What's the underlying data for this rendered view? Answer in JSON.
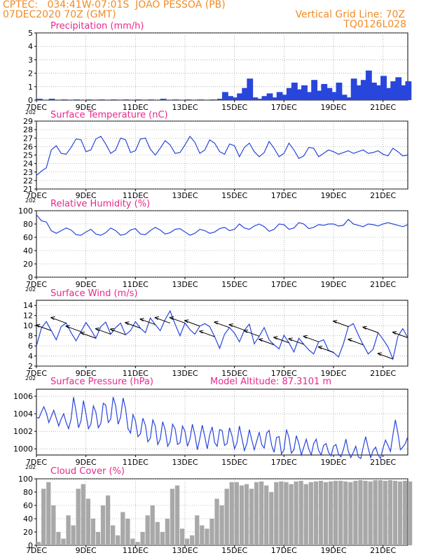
{
  "header": {
    "line1": "CPTEC:   034:41W-07:01S  JOAO PESSOA (PB)",
    "line2": "07DEC2020 70Z (GMT)",
    "right1": "Vertical Grid Line: 70Z",
    "right2": "TQ0126L028"
  },
  "colors": {
    "header": "#f08c28",
    "title": "#e8288c",
    "series": "#2846dc",
    "cloud": "#a8a8a8",
    "wind_arrow": "#000000"
  },
  "x_axis": {
    "labels": [
      "7DEC",
      "9DEC",
      "11DEC",
      "13DEC",
      "15DEC",
      "17DEC",
      "19DEC",
      "21DEC"
    ],
    "start_day": 7,
    "end_day": 22,
    "overlap_label": "202"
  },
  "chart_data": [
    {
      "id": "precip",
      "type": "bar",
      "title": "Precipitation (mm/h)",
      "ylim": [
        0,
        5
      ],
      "yticks": [
        0,
        1,
        2,
        3,
        4,
        5
      ],
      "grid": true,
      "x_days": [
        7.0,
        7.5,
        8.0,
        8.5,
        9.0,
        9.5,
        10.0,
        10.5,
        11.0,
        11.5,
        12.0,
        12.5,
        13.0,
        13.5,
        14.0,
        14.3,
        14.5,
        14.7,
        14.9,
        15.1,
        15.3,
        15.5,
        15.7,
        15.9,
        16.1,
        16.3,
        16.5,
        16.7,
        16.9,
        17.1,
        17.3,
        17.5,
        17.7,
        17.9,
        18.1,
        18.3,
        18.5,
        18.7,
        18.9,
        19.1,
        19.3,
        19.5,
        19.7,
        19.9,
        20.1,
        20.3,
        20.5,
        20.7,
        20.9,
        21.1,
        21.3,
        21.5,
        21.7,
        21.9
      ],
      "values": [
        0.1,
        0.1,
        0.05,
        0.05,
        0.05,
        0.05,
        0.05,
        0.05,
        0.05,
        0.05,
        0.1,
        0.05,
        0.05,
        0.05,
        0.05,
        0.1,
        0.6,
        0.3,
        0.2,
        0.5,
        0.9,
        1.6,
        0.2,
        0.1,
        0.3,
        0.5,
        0.2,
        0.6,
        0.4,
        0.9,
        1.3,
        0.8,
        1.1,
        0.6,
        1.5,
        0.7,
        1.2,
        0.9,
        0.6,
        1.3,
        0.4,
        0.2,
        1.6,
        1.1,
        1.5,
        2.2,
        1.3,
        1.1,
        1.8,
        0.9,
        1.4,
        1.7,
        1.1,
        1.4
      ]
    },
    {
      "id": "temp",
      "type": "line",
      "title": "Surface Temperature (nC)",
      "ylim": [
        21,
        29
      ],
      "yticks": [
        21,
        22,
        23,
        24,
        25,
        26,
        27,
        28,
        29
      ],
      "grid": true,
      "x_days": [
        7.0,
        7.2,
        7.4,
        7.6,
        7.8,
        8.0,
        8.2,
        8.4,
        8.6,
        8.8,
        9.0,
        9.2,
        9.4,
        9.6,
        9.8,
        10.0,
        10.2,
        10.4,
        10.6,
        10.8,
        11.0,
        11.2,
        11.4,
        11.6,
        11.8,
        12.0,
        12.2,
        12.4,
        12.6,
        12.8,
        13.0,
        13.2,
        13.4,
        13.6,
        13.8,
        14.0,
        14.2,
        14.4,
        14.6,
        14.8,
        15.0,
        15.2,
        15.4,
        15.6,
        15.8,
        16.0,
        16.2,
        16.4,
        16.6,
        16.8,
        17.0,
        17.2,
        17.4,
        17.6,
        17.8,
        18.0,
        18.2,
        18.4,
        18.6,
        18.8,
        19.0,
        19.2,
        19.4,
        19.6,
        19.8,
        20.0,
        20.2,
        20.4,
        20.6,
        20.8,
        21.0,
        21.2,
        21.4,
        21.6,
        21.8,
        22.0
      ],
      "values": [
        22.6,
        23.1,
        23.5,
        25.6,
        26.1,
        25.2,
        25.1,
        25.9,
        26.9,
        26.8,
        25.4,
        25.6,
        26.9,
        27.2,
        26.3,
        25.2,
        25.6,
        27.0,
        26.8,
        25.3,
        25.5,
        26.9,
        27.0,
        25.7,
        25.0,
        25.8,
        26.7,
        26.2,
        25.2,
        25.3,
        26.2,
        27.2,
        26.5,
        25.2,
        25.6,
        26.8,
        26.4,
        25.4,
        25.1,
        26.3,
        26.1,
        24.8,
        25.9,
        26.4,
        25.4,
        24.8,
        25.3,
        26.6,
        25.8,
        24.8,
        25.2,
        26.4,
        25.6,
        24.6,
        24.9,
        25.9,
        25.8,
        24.8,
        25.2,
        25.6,
        25.4,
        25.1,
        25.3,
        25.5,
        25.2,
        25.4,
        25.6,
        25.2,
        25.3,
        25.5,
        25.1,
        24.9,
        25.8,
        25.4,
        24.9,
        25.0
      ]
    },
    {
      "id": "rh",
      "type": "line",
      "title": "Relative Humidity (%)",
      "ylim": [
        0,
        100
      ],
      "yticks": [
        0,
        20,
        40,
        60,
        80,
        100
      ],
      "grid": true,
      "x_days": [
        7.0,
        7.2,
        7.4,
        7.6,
        7.8,
        8.0,
        8.2,
        8.4,
        8.6,
        8.8,
        9.0,
        9.2,
        9.4,
        9.6,
        9.8,
        10.0,
        10.2,
        10.4,
        10.6,
        10.8,
        11.0,
        11.2,
        11.4,
        11.6,
        11.8,
        12.0,
        12.2,
        12.4,
        12.6,
        12.8,
        13.0,
        13.2,
        13.4,
        13.6,
        13.8,
        14.0,
        14.2,
        14.4,
        14.6,
        14.8,
        15.0,
        15.2,
        15.4,
        15.6,
        15.8,
        16.0,
        16.2,
        16.4,
        16.6,
        16.8,
        17.0,
        17.2,
        17.4,
        17.6,
        17.8,
        18.0,
        18.2,
        18.4,
        18.6,
        18.8,
        19.0,
        19.2,
        19.4,
        19.6,
        19.8,
        20.0,
        20.2,
        20.4,
        20.6,
        20.8,
        21.0,
        21.2,
        21.4,
        21.6,
        21.8,
        22.0
      ],
      "values": [
        94,
        85,
        83,
        70,
        66,
        70,
        74,
        71,
        64,
        63,
        68,
        72,
        65,
        63,
        67,
        74,
        70,
        63,
        65,
        71,
        73,
        65,
        64,
        70,
        75,
        71,
        65,
        67,
        72,
        73,
        68,
        63,
        66,
        72,
        70,
        66,
        68,
        73,
        75,
        70,
        72,
        80,
        74,
        72,
        77,
        80,
        76,
        69,
        72,
        80,
        79,
        72,
        74,
        82,
        80,
        73,
        75,
        79,
        78,
        80,
        80,
        77,
        78,
        87,
        80,
        78,
        76,
        80,
        79,
        77,
        80,
        82,
        80,
        78,
        76,
        79
      ]
    },
    {
      "id": "wind",
      "type": "line",
      "title": "Surface Wind (m/s)",
      "ylim": [
        2,
        15
      ],
      "yticks": [
        2,
        4,
        6,
        8,
        10,
        12,
        14
      ],
      "grid": true,
      "x_days": [
        7.0,
        7.2,
        7.4,
        7.6,
        7.8,
        8.0,
        8.2,
        8.4,
        8.6,
        8.8,
        9.0,
        9.2,
        9.4,
        9.6,
        9.8,
        10.0,
        10.2,
        10.4,
        10.6,
        10.8,
        11.0,
        11.2,
        11.4,
        11.6,
        11.8,
        12.0,
        12.2,
        12.4,
        12.6,
        12.8,
        13.0,
        13.2,
        13.4,
        13.6,
        13.8,
        14.0,
        14.2,
        14.4,
        14.6,
        14.8,
        15.0,
        15.2,
        15.4,
        15.6,
        15.8,
        16.0,
        16.2,
        16.4,
        16.6,
        16.8,
        17.0,
        17.2,
        17.4,
        17.6,
        17.8,
        18.0,
        18.2,
        18.4,
        18.6,
        18.8,
        19.0,
        19.2,
        19.4,
        19.6,
        19.8,
        20.0,
        20.2,
        20.4,
        20.6,
        20.8,
        21.0,
        21.2,
        21.4,
        21.6,
        21.8,
        22.0
      ],
      "values": [
        6.0,
        9.5,
        10.8,
        9.0,
        7.2,
        9.8,
        10.5,
        8.6,
        7.0,
        8.8,
        10.6,
        9.2,
        7.5,
        9.8,
        10.7,
        8.3,
        9.6,
        10.5,
        8.2,
        9.0,
        10.8,
        9.5,
        8.6,
        11.5,
        10.2,
        9.0,
        11.2,
        12.9,
        10.3,
        8.0,
        10.5,
        9.2,
        8.3,
        9.9,
        10.4,
        9.8,
        7.8,
        5.5,
        8.3,
        9.6,
        8.5,
        6.8,
        9.1,
        10.3,
        6.4,
        7.9,
        9.6,
        7.2,
        6.2,
        5.4,
        8.1,
        6.6,
        4.8,
        7.5,
        6.3,
        5.2,
        4.4,
        6.8,
        7.2,
        5.1,
        4.7,
        3.8,
        6.4,
        9.8,
        10.4,
        8.2,
        6.2,
        4.4,
        5.3,
        8.6,
        7.3,
        5.8,
        3.4,
        7.9,
        9.4,
        7.6
      ]
    },
    {
      "id": "pres",
      "type": "line",
      "title": "Surface Pressure (hPa)",
      "annotation": "Model Altitude: 87.3101 m",
      "ylim": [
        999.3,
        1006.8
      ],
      "yticks": [
        1000,
        1002,
        1004,
        1006
      ],
      "grid": true,
      "x_days": [
        7.0,
        7.1,
        7.2,
        7.3,
        7.4,
        7.5,
        7.6,
        7.7,
        7.8,
        7.9,
        8.0,
        8.1,
        8.2,
        8.3,
        8.4,
        8.5,
        8.6,
        8.7,
        8.8,
        8.9,
        9.0,
        9.1,
        9.2,
        9.3,
        9.4,
        9.5,
        9.6,
        9.7,
        9.8,
        9.9,
        10.0,
        10.1,
        10.2,
        10.3,
        10.4,
        10.5,
        10.6,
        10.7,
        10.8,
        10.9,
        11.0,
        11.1,
        11.2,
        11.3,
        11.4,
        11.5,
        11.6,
        11.7,
        11.8,
        11.9,
        12.0,
        12.1,
        12.2,
        12.3,
        12.4,
        12.5,
        12.6,
        12.7,
        12.8,
        12.9,
        13.0,
        13.1,
        13.2,
        13.3,
        13.4,
        13.5,
        13.6,
        13.7,
        13.8,
        13.9,
        14.0,
        14.1,
        14.2,
        14.3,
        14.4,
        14.5,
        14.6,
        14.7,
        14.8,
        14.9,
        15.0,
        15.1,
        15.2,
        15.3,
        15.4,
        15.5,
        15.6,
        15.7,
        15.8,
        15.9,
        16.0,
        16.1,
        16.2,
        16.3,
        16.4,
        16.5,
        16.6,
        16.7,
        16.8,
        16.9,
        17.0,
        17.1,
        17.2,
        17.3,
        17.4,
        17.5,
        17.6,
        17.7,
        17.8,
        17.9,
        18.0,
        18.1,
        18.2,
        18.3,
        18.4,
        18.5,
        18.6,
        18.7,
        18.8,
        18.9,
        19.0,
        19.1,
        19.2,
        19.3,
        19.4,
        19.5,
        19.6,
        19.7,
        19.8,
        19.9,
        20.0,
        20.1,
        20.2,
        20.3,
        20.4,
        20.5,
        20.6,
        20.7,
        20.8,
        20.9,
        21.0,
        21.1,
        21.2,
        21.3,
        21.4,
        21.5,
        21.6,
        21.7,
        21.8,
        21.9,
        22.0
      ],
      "values": [
        1003.6,
        1003.5,
        1004.2,
        1004.8,
        1004.1,
        1003.0,
        1003.7,
        1004.4,
        1003.5,
        1002.6,
        1003.4,
        1004.0,
        1003.0,
        1002.3,
        1003.4,
        1005.9,
        1004.3,
        1002.4,
        1003.2,
        1005.5,
        1004.0,
        1002.3,
        1002.8,
        1004.9,
        1004.2,
        1002.4,
        1002.9,
        1005.2,
        1005.0,
        1003.0,
        1003.4,
        1005.9,
        1004.9,
        1002.8,
        1003.6,
        1005.8,
        1004.6,
        1002.3,
        1001.8,
        1003.9,
        1003.2,
        1001.4,
        1001.7,
        1003.5,
        1002.7,
        1000.8,
        1001.2,
        1003.3,
        1002.6,
        1000.5,
        1001.1,
        1003.1,
        1002.2,
        1000.3,
        1000.8,
        1002.8,
        1002.3,
        1000.5,
        1000.7,
        1002.6,
        1002.0,
        1000.3,
        1001.1,
        1002.8,
        1001.6,
        999.9,
        1001.2,
        1002.7,
        1001.4,
        1000.0,
        1001.6,
        1002.5,
        1000.7,
        1000.3,
        1002.2,
        1002.1,
        1000.4,
        1000.6,
        1002.4,
        1001.5,
        1000.0,
        1000.7,
        1002.6,
        1001.2,
        999.8,
        1000.6,
        1002.2,
        1001.0,
        999.9,
        1000.9,
        1001.9,
        1000.5,
        1000.1,
        1001.8,
        1002.1,
        1000.4,
        999.6,
        1001.3,
        1001.4,
        999.4,
        999.9,
        1002.2,
        1001.3,
        999.5,
        999.9,
        1001.5,
        1000.6,
        999.3,
        1000.2,
        1001.1,
        1000.0,
        999.3,
        1000.6,
        1001.1,
        999.8,
        999.3,
        1000.4,
        1000.6,
        999.6,
        999.2,
        1000.3,
        1000.5,
        999.4,
        999.1,
        999.9,
        1001.1,
        999.7,
        999.0,
        999.6,
        1000.3,
        999.1,
        998.9,
        1000.2,
        1001.4,
        1000.1,
        999.0,
        999.8,
        1000.2,
        999.3,
        998.9,
        1000.1,
        1001.0,
        1000.4,
        999.7,
        1001.6,
        1003.3,
        1001.8,
        999.9,
        1000.2,
        1000.6,
        1001.4
      ]
    },
    {
      "id": "cloud",
      "type": "bar",
      "title": "Cloud Cover (%)",
      "ylim": [
        0,
        100
      ],
      "yticks": [
        0,
        20,
        40,
        60,
        80,
        100
      ],
      "grid": true,
      "x_days": [
        7.0,
        7.2,
        7.4,
        7.6,
        7.8,
        8.0,
        8.2,
        8.4,
        8.6,
        8.8,
        9.0,
        9.2,
        9.4,
        9.6,
        9.8,
        10.0,
        10.2,
        10.4,
        10.6,
        10.8,
        11.0,
        11.2,
        11.4,
        11.6,
        11.8,
        12.0,
        12.2,
        12.4,
        12.6,
        12.8,
        13.0,
        13.2,
        13.4,
        13.6,
        13.8,
        14.0,
        14.2,
        14.4,
        14.6,
        14.8,
        15.0,
        15.2,
        15.4,
        15.6,
        15.8,
        16.0,
        16.2,
        16.4,
        16.6,
        16.8,
        17.0,
        17.2,
        17.4,
        17.6,
        17.8,
        18.0,
        18.2,
        18.4,
        18.6,
        18.8,
        19.0,
        19.2,
        19.4,
        19.6,
        19.8,
        20.0,
        20.2,
        20.4,
        20.6,
        20.8,
        21.0,
        21.2,
        21.4,
        21.6,
        21.8,
        22.0
      ],
      "values": [
        5,
        85,
        95,
        60,
        20,
        10,
        45,
        30,
        85,
        92,
        70,
        40,
        20,
        60,
        75,
        30,
        15,
        50,
        40,
        10,
        5,
        20,
        45,
        60,
        35,
        20,
        40,
        85,
        90,
        25,
        10,
        15,
        45,
        30,
        25,
        40,
        70,
        60,
        85,
        95,
        95,
        90,
        92,
        85,
        95,
        96,
        90,
        80,
        95,
        96,
        95,
        92,
        96,
        97,
        92,
        95,
        96,
        97,
        95,
        96,
        97,
        97,
        96,
        95,
        97,
        98,
        97,
        96,
        98,
        98,
        97,
        98,
        97,
        96,
        97,
        96
      ]
    }
  ]
}
